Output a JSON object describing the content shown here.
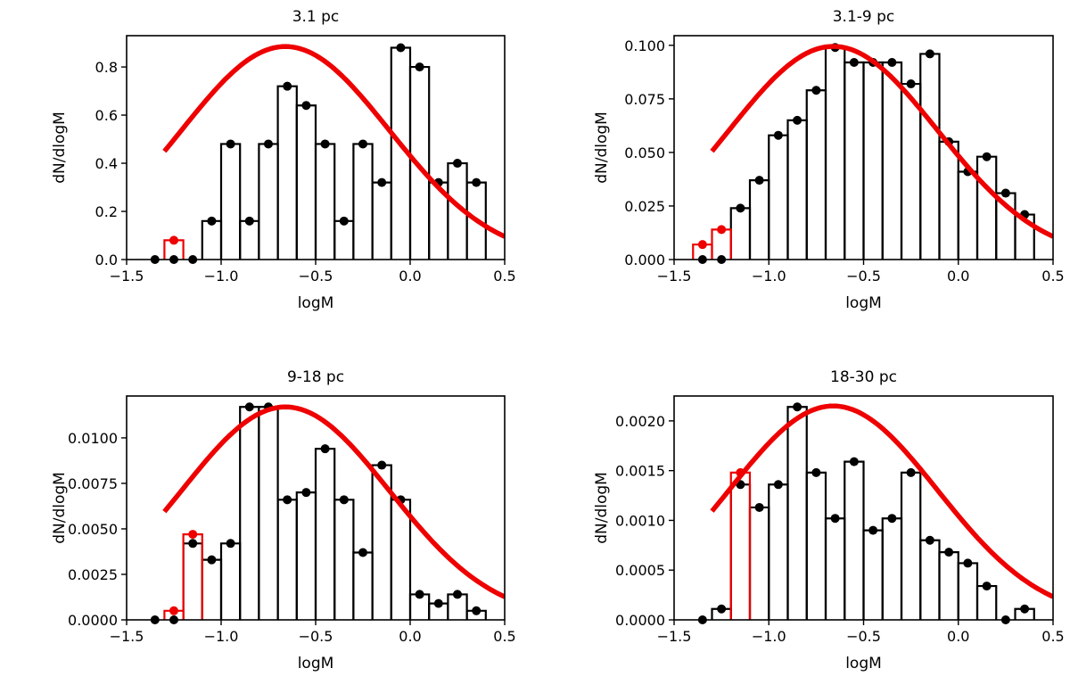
{
  "chart_data": [
    {
      "type": "line",
      "title": "3.1 pc",
      "xlabel": "logM",
      "ylabel": "dN/dlogM",
      "xlim": [
        -1.5,
        0.5
      ],
      "ylim": [
        0,
        0.93
      ],
      "xticks": [
        -1.5,
        -1.0,
        -0.5,
        0.0,
        0.5
      ],
      "xtick_labels": [
        "−1.5",
        "−1.0",
        "−0.5",
        "0.0",
        "0.5"
      ],
      "yticks": [
        0,
        0.2,
        0.4,
        0.6,
        0.8
      ],
      "ytick_labels": [
        "0.0",
        "0.2",
        "0.4",
        "0.6",
        "0.8"
      ],
      "series": [
        {
          "role": "histogram-black",
          "color": "#000000",
          "x": [
            -1.35,
            -1.25,
            -1.15,
            -1.05,
            -0.95,
            -0.85,
            -0.75,
            -0.65,
            -0.55,
            -0.45,
            -0.35,
            -0.25,
            -0.15,
            -0.05,
            0.05,
            0.15,
            0.25,
            0.35
          ],
          "values": [
            0,
            0,
            0,
            0.16,
            0.48,
            0.16,
            0.48,
            0.72,
            0.64,
            0.48,
            0.16,
            0.48,
            0.32,
            0.88,
            0.8,
            0.32,
            0.4,
            0.32
          ]
        },
        {
          "role": "histogram-red",
          "color": "#ee0000",
          "x": [
            -1.25
          ],
          "values": [
            0.08
          ]
        },
        {
          "role": "fit-curve",
          "color": "#ee0000",
          "peak": 0.885,
          "mu": -0.66,
          "sigma": 0.55,
          "xrange": [
            -1.3,
            0.5
          ]
        }
      ]
    },
    {
      "type": "line",
      "title": "3.1-9 pc",
      "xlabel": "logM",
      "ylabel": "dN/dlogM",
      "xlim": [
        -1.5,
        0.5
      ],
      "ylim": [
        0,
        0.1045
      ],
      "xticks": [
        -1.5,
        -1.0,
        -0.5,
        0.0,
        0.5
      ],
      "xtick_labels": [
        "−1.5",
        "−1.0",
        "−0.5",
        "0.0",
        "0.5"
      ],
      "yticks": [
        0,
        0.025,
        0.05,
        0.075,
        0.1
      ],
      "ytick_labels": [
        "0.000",
        "0.025",
        "0.050",
        "0.075",
        "0.100"
      ],
      "series": [
        {
          "role": "histogram-black",
          "color": "#000000",
          "x": [
            -1.35,
            -1.25,
            -1.15,
            -1.05,
            -0.95,
            -0.85,
            -0.75,
            -0.65,
            -0.55,
            -0.45,
            -0.35,
            -0.25,
            -0.15,
            -0.05,
            0.05,
            0.15,
            0.25,
            0.35
          ],
          "values": [
            0,
            0,
            0.024,
            0.037,
            0.058,
            0.065,
            0.079,
            0.099,
            0.092,
            0.092,
            0.092,
            0.082,
            0.096,
            0.055,
            0.041,
            0.048,
            0.031,
            0.021
          ]
        },
        {
          "role": "histogram-red",
          "color": "#ee0000",
          "x": [
            -1.35,
            -1.25
          ],
          "values": [
            0.007,
            0.014
          ]
        },
        {
          "role": "fit-curve",
          "color": "#ee0000",
          "peak": 0.0995,
          "mu": -0.66,
          "sigma": 0.55,
          "xrange": [
            -1.3,
            0.5
          ]
        }
      ]
    },
    {
      "type": "line",
      "title": "9-18 pc",
      "xlabel": "logM",
      "ylabel": "dN/dlogM",
      "xlim": [
        -1.5,
        0.5
      ],
      "ylim": [
        0,
        0.0123
      ],
      "xticks": [
        -1.5,
        -1.0,
        -0.5,
        0.0,
        0.5
      ],
      "xtick_labels": [
        "−1.5",
        "−1.0",
        "−0.5",
        "0.0",
        "0.5"
      ],
      "yticks": [
        0,
        0.0025,
        0.005,
        0.0075,
        0.01
      ],
      "ytick_labels": [
        "0.0000",
        "0.0025",
        "0.0050",
        "0.0075",
        "0.0100"
      ],
      "series": [
        {
          "role": "histogram-black",
          "color": "#000000",
          "x": [
            -1.35,
            -1.25,
            -1.15,
            -1.05,
            -0.95,
            -0.85,
            -0.75,
            -0.65,
            -0.55,
            -0.45,
            -0.35,
            -0.25,
            -0.15,
            -0.05,
            0.05,
            0.15,
            0.25,
            0.35
          ],
          "values": [
            0,
            0,
            0.0042,
            0.0033,
            0.0042,
            0.0117,
            0.0117,
            0.0066,
            0.007,
            0.0094,
            0.0066,
            0.0037,
            0.0085,
            0.0066,
            0.0014,
            0.0009,
            0.0014,
            0.0005
          ]
        },
        {
          "role": "histogram-red",
          "color": "#ee0000",
          "x": [
            -1.25,
            -1.15
          ],
          "values": [
            0.0005,
            0.0047
          ]
        },
        {
          "role": "fit-curve",
          "color": "#ee0000",
          "peak": 0.0117,
          "mu": -0.66,
          "sigma": 0.55,
          "xrange": [
            -1.3,
            0.5
          ]
        }
      ]
    },
    {
      "type": "line",
      "title": "18-30 pc",
      "xlabel": "logM",
      "ylabel": "dN/dlogM",
      "xlim": [
        -1.5,
        0.5
      ],
      "ylim": [
        0,
        0.00225
      ],
      "xticks": [
        -1.5,
        -1.0,
        -0.5,
        0.0,
        0.5
      ],
      "xtick_labels": [
        "−1.5",
        "−1.0",
        "−0.5",
        "0.0",
        "0.5"
      ],
      "yticks": [
        0,
        0.0005,
        0.001,
        0.0015,
        0.002
      ],
      "ytick_labels": [
        "0.0000",
        "0.0005",
        "0.0010",
        "0.0015",
        "0.0020"
      ],
      "series": [
        {
          "role": "histogram-black",
          "color": "#000000",
          "x": [
            -1.35,
            -1.25,
            -1.15,
            -1.05,
            -0.95,
            -0.85,
            -0.75,
            -0.65,
            -0.55,
            -0.45,
            -0.35,
            -0.25,
            -0.15,
            -0.05,
            0.05,
            0.15,
            0.25,
            0.35
          ],
          "values": [
            0,
            0.00011,
            0.00136,
            0.00113,
            0.00136,
            0.00214,
            0.00148,
            0.00102,
            0.00159,
            0.0009,
            0.00102,
            0.00148,
            0.0008,
            0.00068,
            0.00057,
            0.00034,
            0,
            0.00011
          ]
        },
        {
          "role": "histogram-red",
          "color": "#ee0000",
          "x": [
            -1.15
          ],
          "values": [
            0.00148
          ]
        },
        {
          "role": "fit-curve",
          "color": "#ee0000",
          "peak": 0.00215,
          "mu": -0.66,
          "sigma": 0.55,
          "xrange": [
            -1.3,
            0.5
          ]
        }
      ]
    }
  ]
}
